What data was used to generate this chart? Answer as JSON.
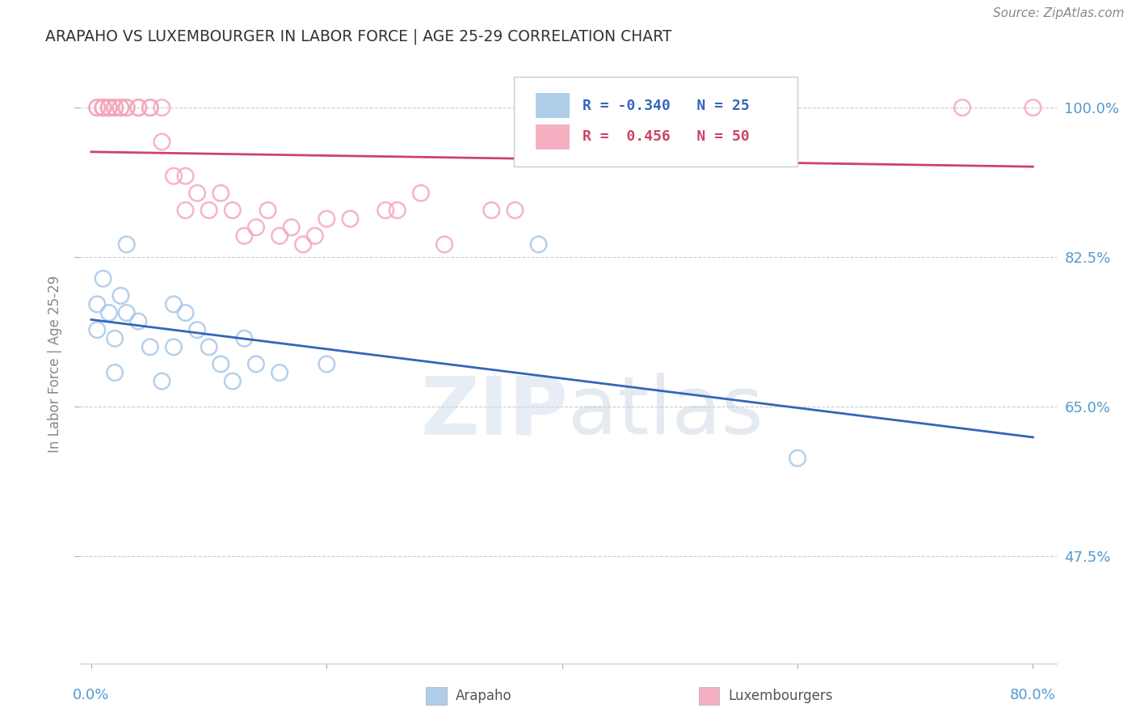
{
  "title": "ARAPAHO VS LUXEMBOURGER IN LABOR FORCE | AGE 25-29 CORRELATION CHART",
  "source": "Source: ZipAtlas.com",
  "ylabel": "In Labor Force | Age 25-29",
  "xlim": [
    0.0,
    0.8
  ],
  "ylim": [
    0.35,
    1.05
  ],
  "watermark": "ZIPatlas",
  "legend": {
    "arapaho_R": "-0.340",
    "arapaho_N": "25",
    "luxembourger_R": "0.456",
    "luxembourger_N": "50"
  },
  "arapaho_color": "#a8c8e8",
  "luxembourger_color": "#f4a8bc",
  "arapaho_line_color": "#3366bb",
  "luxembourger_line_color": "#cc4466",
  "arapaho_x": [
    0.005,
    0.005,
    0.01,
    0.015,
    0.02,
    0.02,
    0.025,
    0.03,
    0.03,
    0.04,
    0.05,
    0.06,
    0.07,
    0.07,
    0.08,
    0.09,
    0.1,
    0.11,
    0.12,
    0.13,
    0.14,
    0.16,
    0.2,
    0.38,
    0.6
  ],
  "arapaho_y": [
    0.77,
    0.74,
    0.8,
    0.76,
    0.73,
    0.69,
    0.78,
    0.76,
    0.84,
    0.75,
    0.72,
    0.68,
    0.77,
    0.72,
    0.76,
    0.74,
    0.72,
    0.7,
    0.68,
    0.73,
    0.7,
    0.69,
    0.7,
    0.84,
    0.59
  ],
  "luxembourger_x": [
    0.005,
    0.005,
    0.01,
    0.01,
    0.01,
    0.01,
    0.015,
    0.015,
    0.015,
    0.02,
    0.02,
    0.025,
    0.025,
    0.03,
    0.03,
    0.04,
    0.04,
    0.05,
    0.05,
    0.06,
    0.06,
    0.07,
    0.08,
    0.08,
    0.09,
    0.1,
    0.11,
    0.12,
    0.13,
    0.14,
    0.15,
    0.16,
    0.17,
    0.18,
    0.19,
    0.2,
    0.22,
    0.25,
    0.26,
    0.28,
    0.3,
    0.34,
    0.36,
    0.4,
    0.42,
    0.5,
    0.52,
    0.56,
    0.74,
    0.8
  ],
  "luxembourger_y": [
    1.0,
    1.0,
    1.0,
    1.0,
    1.0,
    1.0,
    1.0,
    1.0,
    1.0,
    1.0,
    1.0,
    1.0,
    1.0,
    1.0,
    1.0,
    1.0,
    1.0,
    1.0,
    1.0,
    1.0,
    0.96,
    0.92,
    0.92,
    0.88,
    0.9,
    0.88,
    0.9,
    0.88,
    0.85,
    0.86,
    0.88,
    0.85,
    0.86,
    0.84,
    0.85,
    0.87,
    0.87,
    0.88,
    0.88,
    0.9,
    0.84,
    0.88,
    0.88,
    1.0,
    1.0,
    1.0,
    1.0,
    1.0,
    1.0,
    1.0
  ],
  "ytick_vals": [
    1.0,
    0.825,
    0.65,
    0.475
  ],
  "ytick_labels": [
    "100.0%",
    "82.5%",
    "65.0%",
    "47.5%"
  ],
  "background_color": "#ffffff",
  "grid_color": "#cccccc",
  "title_color": "#333333",
  "tick_label_color": "#5599cc"
}
